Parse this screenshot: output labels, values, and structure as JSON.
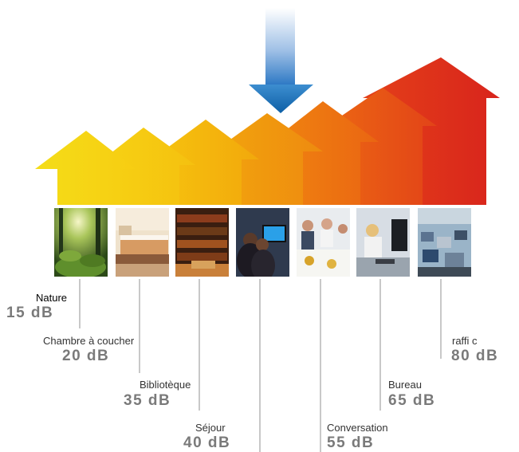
{
  "levels": [
    {
      "label": "Nature",
      "value": "15 dB",
      "icon": "forest-photo",
      "color": "#f6d312"
    },
    {
      "label": "Chambre à coucher",
      "value": "20 dB",
      "icon": "bedroom-photo",
      "color": "#f7c70c"
    },
    {
      "label": "Bibliotèque",
      "value": "35 dB",
      "icon": "library-photo",
      "color": "#f6b00c"
    },
    {
      "label": "Séjour",
      "value": "40 dB",
      "icon": "living-room-tv-photo",
      "color": "#f29310"
    },
    {
      "label": "Conversation",
      "value": "55 dB",
      "icon": "dinner-conversation-photo",
      "color": "#ee7410"
    },
    {
      "label": "Bureau",
      "value": "65 dB",
      "icon": "office-photo",
      "color": "#e84f13"
    },
    {
      "label": "raffi c",
      "value": "80 dB",
      "icon": "traffic-photo",
      "color": "#dc2a1a"
    }
  ],
  "indicator": {
    "icon": "blue-down-arrow-icon",
    "color": "#1b78c0"
  }
}
